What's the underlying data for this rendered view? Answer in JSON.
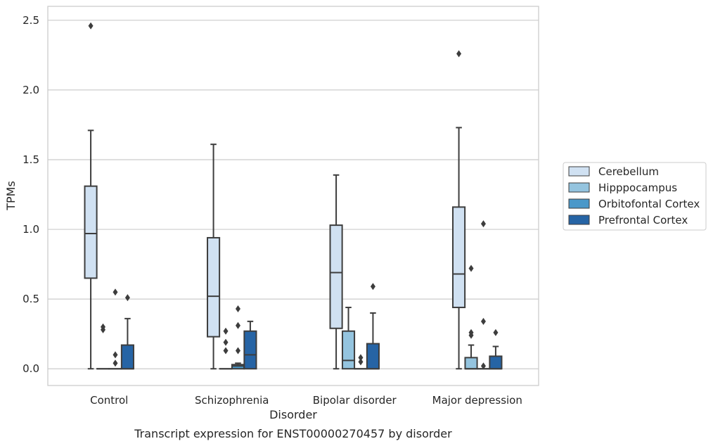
{
  "chart_data": {
    "type": "box",
    "caption": "Transcript expression for ENST00000270457 by disorder",
    "xlabel": "Disorder",
    "ylabel": "TPMs",
    "ylim": [
      -0.12,
      2.6
    ],
    "yticks": [
      "0.0",
      "0.5",
      "1.0",
      "1.5",
      "2.0",
      "2.5"
    ],
    "grid": "horizontal",
    "legend_position": "right",
    "categories": [
      "Control",
      "Schizophrenia",
      "Bipolar disorder",
      "Major depression"
    ],
    "series": [
      {
        "name": "Cerebellum",
        "color": "#d0e1f2",
        "boxes": [
          {
            "q1": 0.65,
            "median": 0.97,
            "q3": 1.31,
            "whislo": 0.0,
            "whishi": 1.71,
            "fliers": [
              2.46
            ]
          },
          {
            "q1": 0.23,
            "median": 0.52,
            "q3": 0.94,
            "whislo": 0.0,
            "whishi": 1.61,
            "fliers": []
          },
          {
            "q1": 0.29,
            "median": 0.69,
            "q3": 1.03,
            "whislo": 0.0,
            "whishi": 1.39,
            "fliers": []
          },
          {
            "q1": 0.44,
            "median": 0.68,
            "q3": 1.16,
            "whislo": 0.0,
            "whishi": 1.73,
            "fliers": [
              2.26
            ]
          }
        ]
      },
      {
        "name": "Hipppocampus",
        "color": "#94c4df",
        "boxes": [
          {
            "q1": 0.0,
            "median": 0.0,
            "q3": 0.0,
            "whislo": 0.0,
            "whishi": 0.0,
            "fliers": [
              0.28,
              0.3
            ]
          },
          {
            "q1": 0.0,
            "median": 0.0,
            "q3": 0.0,
            "whislo": 0.0,
            "whishi": 0.0,
            "fliers": [
              0.13,
              0.19,
              0.27
            ]
          },
          {
            "q1": 0.0,
            "median": 0.06,
            "q3": 0.27,
            "whislo": 0.0,
            "whishi": 0.44,
            "fliers": []
          },
          {
            "q1": 0.0,
            "median": 0.0,
            "q3": 0.08,
            "whislo": 0.0,
            "whishi": 0.17,
            "fliers": [
              0.24,
              0.26,
              0.72
            ]
          }
        ]
      },
      {
        "name": "Orbitofontal Cortex",
        "color": "#4a98c9",
        "boxes": [
          {
            "q1": 0.0,
            "median": 0.0,
            "q3": 0.0,
            "whislo": 0.0,
            "whishi": 0.0,
            "fliers": [
              0.04,
              0.1,
              0.55
            ]
          },
          {
            "q1": 0.0,
            "median": 0.02,
            "q3": 0.03,
            "whislo": 0.0,
            "whishi": 0.04,
            "fliers": [
              0.13,
              0.31,
              0.43
            ]
          },
          {
            "q1": 0.0,
            "median": 0.0,
            "q3": 0.0,
            "whislo": 0.0,
            "whishi": 0.0,
            "fliers": [
              0.05,
              0.08
            ]
          },
          {
            "q1": 0.0,
            "median": 0.0,
            "q3": 0.0,
            "whislo": 0.0,
            "whishi": 0.0,
            "fliers": [
              0.02,
              0.34,
              1.04
            ]
          }
        ]
      },
      {
        "name": "Prefrontal Cortex",
        "color": "#2664a5",
        "boxes": [
          {
            "q1": 0.0,
            "median": 0.0,
            "q3": 0.17,
            "whislo": 0.0,
            "whishi": 0.36,
            "fliers": [
              0.51
            ]
          },
          {
            "q1": 0.0,
            "median": 0.1,
            "q3": 0.27,
            "whislo": 0.0,
            "whishi": 0.34,
            "fliers": []
          },
          {
            "q1": 0.0,
            "median": 0.0,
            "q3": 0.18,
            "whislo": 0.0,
            "whishi": 0.4,
            "fliers": [
              0.59
            ]
          },
          {
            "q1": 0.0,
            "median": 0.0,
            "q3": 0.09,
            "whislo": 0.0,
            "whishi": 0.16,
            "fliers": [
              0.26
            ]
          }
        ]
      }
    ]
  }
}
